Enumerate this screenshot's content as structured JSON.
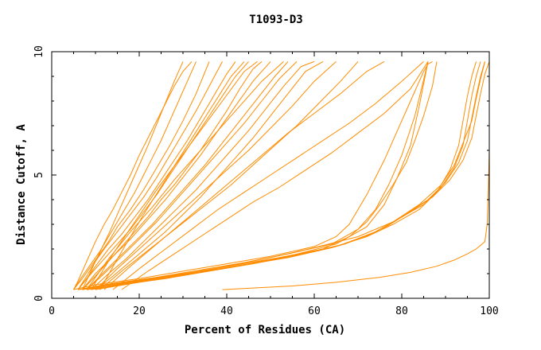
{
  "chart_data": {
    "type": "line",
    "title": "T1093-D3",
    "xlabel": "Percent of Residues (CA)",
    "ylabel": "Distance Cutoff, A",
    "xlim": [
      0,
      100
    ],
    "ylim": [
      0,
      10
    ],
    "x_ticks_major": [
      0,
      20,
      40,
      60,
      80,
      100
    ],
    "y_ticks_major": [
      0,
      5,
      10
    ],
    "line_color": "#ff8c00",
    "grid": false,
    "series": [
      {
        "x": [
          5,
          6,
          7,
          8,
          9,
          10,
          12,
          14,
          16,
          18,
          20,
          22,
          24,
          26,
          28,
          30,
          32
        ],
        "y": [
          0.35,
          0.7,
          1.1,
          1.5,
          1.9,
          2.3,
          3.0,
          3.6,
          4.3,
          5.0,
          5.8,
          6.5,
          7.2,
          7.9,
          8.6,
          9.2,
          9.6
        ]
      },
      {
        "x": [
          5,
          7,
          9,
          11,
          13,
          15,
          17,
          19,
          21,
          23,
          25,
          27,
          29,
          31,
          33
        ],
        "y": [
          0.35,
          0.9,
          1.4,
          1.9,
          2.5,
          3.1,
          3.7,
          4.3,
          5.0,
          5.7,
          6.4,
          7.2,
          8.0,
          8.8,
          9.6
        ]
      },
      {
        "x": [
          5,
          7,
          9,
          11,
          13,
          15,
          18,
          21,
          24,
          27,
          30,
          33,
          36
        ],
        "y": [
          0.35,
          0.8,
          1.3,
          1.8,
          2.3,
          2.9,
          3.6,
          4.4,
          5.3,
          6.2,
          7.2,
          8.3,
          9.6
        ]
      },
      {
        "x": [
          6,
          8,
          10,
          12,
          15,
          18,
          21,
          24,
          27,
          30,
          33,
          36,
          39
        ],
        "y": [
          0.35,
          0.9,
          1.5,
          2.0,
          2.7,
          3.4,
          4.1,
          4.9,
          5.8,
          6.7,
          7.6,
          8.6,
          9.6
        ]
      },
      {
        "x": [
          6,
          8,
          10,
          13,
          16,
          19,
          22,
          25,
          28,
          31,
          34,
          37,
          40,
          42
        ],
        "y": [
          0.35,
          0.8,
          1.3,
          2.0,
          2.6,
          3.3,
          4.0,
          4.8,
          5.6,
          6.4,
          7.3,
          8.2,
          9.1,
          9.6
        ]
      },
      {
        "x": [
          6,
          9,
          12,
          15,
          18,
          21,
          24,
          27,
          30,
          33,
          36,
          39,
          42,
          45
        ],
        "y": [
          0.35,
          1.0,
          1.6,
          2.2,
          2.8,
          3.5,
          4.2,
          5.0,
          5.8,
          6.6,
          7.4,
          8.2,
          9.0,
          9.6
        ]
      },
      {
        "x": [
          7,
          10,
          13,
          16,
          19,
          22,
          25,
          28,
          31,
          34,
          37,
          40,
          43,
          46,
          48
        ],
        "y": [
          0.35,
          0.9,
          1.5,
          2.1,
          2.7,
          3.3,
          4.0,
          4.6,
          5.3,
          6.0,
          6.8,
          7.6,
          8.5,
          9.3,
          9.6
        ]
      },
      {
        "x": [
          7,
          10,
          14,
          18,
          22,
          26,
          30,
          34,
          38,
          42,
          46,
          50
        ],
        "y": [
          0.35,
          1.0,
          1.7,
          2.4,
          3.2,
          4.0,
          4.9,
          5.8,
          6.8,
          7.8,
          8.8,
          9.6
        ]
      },
      {
        "x": [
          8,
          11,
          15,
          19,
          23,
          27,
          31,
          35,
          39,
          43,
          47,
          51,
          54
        ],
        "y": [
          0.35,
          0.9,
          1.6,
          2.3,
          3.0,
          3.8,
          4.6,
          5.4,
          6.3,
          7.2,
          8.1,
          9.0,
          9.6
        ]
      },
      {
        "x": [
          8,
          12,
          16,
          20,
          24,
          28,
          32,
          36,
          40,
          44,
          48,
          52,
          56
        ],
        "y": [
          0.35,
          1.0,
          1.7,
          2.4,
          3.1,
          3.9,
          4.7,
          5.5,
          6.3,
          7.1,
          8.0,
          8.9,
          9.6
        ]
      },
      {
        "x": [
          9,
          13,
          17,
          21,
          25,
          29,
          33,
          37,
          41,
          45,
          49,
          53,
          57,
          60
        ],
        "y": [
          0.35,
          1.0,
          1.6,
          2.3,
          3.0,
          3.7,
          4.4,
          5.2,
          6.0,
          6.8,
          7.7,
          8.6,
          9.4,
          9.6
        ]
      },
      {
        "x": [
          10,
          14,
          18,
          22,
          26,
          30,
          34,
          38,
          42,
          46,
          50,
          54,
          58,
          62
        ],
        "y": [
          0.35,
          0.9,
          1.5,
          2.1,
          2.7,
          3.4,
          4.1,
          4.9,
          5.7,
          6.5,
          7.4,
          8.3,
          9.2,
          9.6
        ]
      },
      {
        "x": [
          10,
          15,
          20,
          25,
          30,
          35,
          40,
          45,
          50,
          55,
          60,
          65
        ],
        "y": [
          0.35,
          1.2,
          2.0,
          2.8,
          3.6,
          4.4,
          5.2,
          6.0,
          6.9,
          7.8,
          8.8,
          9.6
        ]
      },
      {
        "x": [
          11,
          16,
          21,
          26,
          31,
          36,
          41,
          46,
          51,
          56,
          61,
          66,
          70
        ],
        "y": [
          0.35,
          1.1,
          1.8,
          2.5,
          3.2,
          3.9,
          4.6,
          5.4,
          6.2,
          7.0,
          7.9,
          8.8,
          9.6
        ]
      },
      {
        "x": [
          12,
          18,
          24,
          30,
          36,
          42,
          48,
          54,
          60,
          66,
          72,
          76
        ],
        "y": [
          0.35,
          1.3,
          2.2,
          3.1,
          4.0,
          4.9,
          5.8,
          6.7,
          7.5,
          8.3,
          9.2,
          9.6
        ]
      },
      {
        "x": [
          14,
          20,
          26,
          32,
          38,
          44,
          50,
          56,
          62,
          68,
          74,
          80,
          85
        ],
        "y": [
          0.35,
          1.2,
          2.0,
          2.8,
          3.6,
          4.3,
          5.0,
          5.7,
          6.4,
          7.1,
          7.9,
          8.8,
          9.6
        ]
      },
      {
        "x": [
          16,
          22,
          28,
          34,
          40,
          46,
          52,
          58,
          64,
          70,
          76,
          82,
          86
        ],
        "y": [
          0.35,
          1.1,
          1.8,
          2.5,
          3.2,
          3.9,
          4.5,
          5.2,
          5.9,
          6.7,
          7.5,
          8.5,
          9.6
        ]
      },
      {
        "x": [
          8,
          13,
          18,
          23,
          28,
          33,
          38,
          43,
          48,
          53
        ],
        "y": [
          0.35,
          1.6,
          2.7,
          3.7,
          4.8,
          5.8,
          6.8,
          7.8,
          8.8,
          9.6
        ]
      },
      {
        "x": [
          9,
          14,
          19,
          24,
          29,
          34,
          39,
          44,
          47
        ],
        "y": [
          0.35,
          1.8,
          3.1,
          4.4,
          5.6,
          6.8,
          8.0,
          9.2,
          9.6
        ]
      },
      {
        "x": [
          11,
          16,
          21,
          26,
          31,
          36,
          41,
          44
        ],
        "y": [
          0.35,
          1.9,
          3.4,
          4.8,
          6.2,
          7.6,
          9.0,
          9.6
        ]
      },
      {
        "x": [
          7,
          10,
          13,
          16,
          19,
          22,
          25,
          28,
          30
        ],
        "y": [
          0.35,
          1.5,
          2.6,
          3.8,
          5.0,
          6.2,
          7.5,
          8.8,
          9.6
        ]
      },
      {
        "x": [
          5,
          10,
          20,
          30,
          40,
          50,
          60,
          65,
          68,
          70,
          72,
          74,
          76,
          78,
          80,
          82,
          84,
          85,
          86,
          87
        ],
        "y": [
          0.35,
          0.55,
          0.8,
          1.1,
          1.4,
          1.7,
          2.1,
          2.5,
          3.0,
          3.6,
          4.2,
          4.9,
          5.6,
          6.4,
          7.2,
          8.0,
          8.8,
          9.2,
          9.5,
          9.6
        ]
      },
      {
        "x": [
          6,
          12,
          22,
          32,
          42,
          52,
          62,
          68,
          72,
          75,
          78,
          81,
          83,
          85,
          87,
          88
        ],
        "y": [
          0.35,
          0.55,
          0.8,
          1.05,
          1.35,
          1.65,
          2.0,
          2.5,
          3.1,
          3.8,
          4.6,
          5.5,
          6.4,
          7.4,
          8.6,
          9.6
        ]
      },
      {
        "x": [
          7,
          14,
          24,
          34,
          44,
          54,
          64,
          70,
          74,
          77,
          80,
          83,
          86
        ],
        "y": [
          0.35,
          0.6,
          0.85,
          1.15,
          1.45,
          1.8,
          2.2,
          2.8,
          3.6,
          4.6,
          5.8,
          7.4,
          9.6
        ]
      },
      {
        "x": [
          8,
          15,
          25,
          35,
          45,
          55,
          65,
          72,
          76,
          79,
          82,
          84,
          86
        ],
        "y": [
          0.35,
          0.55,
          0.8,
          1.1,
          1.4,
          1.75,
          2.2,
          2.9,
          3.8,
          4.9,
          6.2,
          7.8,
          9.6
        ]
      },
      {
        "x": [
          6,
          14,
          24,
          34,
          44,
          54,
          64,
          72,
          78,
          84,
          88,
          91,
          93,
          94,
          95,
          96,
          97
        ],
        "y": [
          0.35,
          0.55,
          0.8,
          1.05,
          1.35,
          1.65,
          2.05,
          2.5,
          3.0,
          3.6,
          4.3,
          5.2,
          6.2,
          7.2,
          8.2,
          9.0,
          9.6
        ]
      },
      {
        "x": [
          7,
          15,
          25,
          35,
          45,
          55,
          65,
          73,
          79,
          85,
          89,
          92,
          94,
          95,
          96,
          97,
          98
        ],
        "y": [
          0.35,
          0.6,
          0.85,
          1.1,
          1.4,
          1.7,
          2.1,
          2.6,
          3.2,
          3.8,
          4.5,
          5.3,
          6.2,
          7.2,
          8.2,
          9.0,
          9.6
        ]
      },
      {
        "x": [
          8,
          16,
          26,
          36,
          46,
          56,
          66,
          74,
          80,
          86,
          90,
          93,
          95,
          96,
          97,
          98,
          99
        ],
        "y": [
          0.35,
          0.55,
          0.8,
          1.1,
          1.4,
          1.75,
          2.15,
          2.7,
          3.3,
          4.0,
          4.7,
          5.5,
          6.4,
          7.3,
          8.2,
          9.0,
          9.6
        ]
      },
      {
        "x": [
          9,
          17,
          27,
          37,
          47,
          57,
          67,
          75,
          81,
          87,
          91,
          94,
          96,
          97,
          98,
          99,
          100
        ],
        "y": [
          0.35,
          0.6,
          0.85,
          1.15,
          1.45,
          1.8,
          2.2,
          2.75,
          3.4,
          4.1,
          4.8,
          5.6,
          6.5,
          7.4,
          8.3,
          9.1,
          9.6
        ]
      },
      {
        "x": [
          10,
          20,
          30,
          40,
          50,
          60,
          70,
          78,
          84,
          89,
          92,
          94,
          96,
          97,
          98,
          99
        ],
        "y": [
          0.35,
          0.65,
          0.95,
          1.3,
          1.65,
          2.05,
          2.5,
          3.1,
          3.8,
          4.6,
          5.4,
          6.3,
          7.2,
          8.1,
          8.9,
          9.6
        ]
      },
      {
        "x": [
          39,
          55,
          65,
          75,
          82,
          88,
          92,
          95,
          97,
          98,
          99,
          99.5,
          99.8,
          100,
          100,
          100
        ],
        "y": [
          0.35,
          0.5,
          0.65,
          0.85,
          1.05,
          1.3,
          1.55,
          1.8,
          2.0,
          2.15,
          2.3,
          3.0,
          4.5,
          6.0,
          8.0,
          9.6
        ]
      }
    ]
  }
}
